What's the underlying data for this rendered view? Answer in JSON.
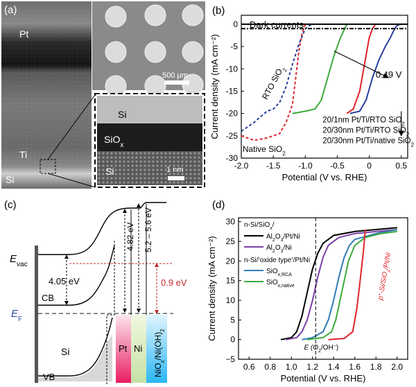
{
  "panel_a": {
    "letter": "(a)",
    "labels": {
      "pt": "Pt",
      "ti": "Ti",
      "si": "Si"
    },
    "sem_scale": "500 μm",
    "inset_labels": {
      "si_top": "Si",
      "siox": "SiO",
      "siox_sub": "x",
      "si_bottom": "Si"
    },
    "inset_scale": "1 nm"
  },
  "panel_b": {
    "letter": "(b)",
    "legend": {
      "dark": "Dark currents",
      "rto": "RTO SiO",
      "rto_sub": "2",
      "native": "Native SiO",
      "native_sub": "2",
      "onset": "0.49 V",
      "entries": [
        {
          "text": "20/1nm Pt/Ti/RTO SiO",
          "sub": "2"
        },
        {
          "text": "20/30nm Pt/Ti/RTO SiO",
          "sub": "2"
        },
        {
          "text": "20/30nm Pt/Ti/native SiO",
          "sub": "2"
        }
      ]
    }
  },
  "panel_c": {
    "letter": "(c)",
    "evac": "E",
    "evac_sub": "vac",
    "ef": "E",
    "ef_sub": "F",
    "gap405": "4.05 eV",
    "gap482": "4.82 eV",
    "gap52": "5.2 – 5.6 eV",
    "gap09": "0.9 eV",
    "cb": "CB",
    "vb": "VB",
    "si": "Si",
    "pt": "Pt",
    "ni": "Ni",
    "niox": "NiO",
    "niox_mid": "/Ni(OH)",
    "niox_x": "x",
    "niox_sub": "2"
  },
  "panel_d": {
    "letter": "(d)",
    "legend_group1": "n-Si/SiO",
    "legend_group1_sub": "x",
    "legend_group1_tail": "/",
    "legend_alo_ptni": "Al",
    "legend_alo_ptni_rest": "O",
    "legend_alo_ptni_tail": "/Pt/Ni",
    "legend_alo_ni_tail": "/Ni",
    "legend_group2": "n-Si/‘oxide type’/Pt/Ni",
    "legend_rca": "SiO",
    "legend_rca_sub": "x,RCA",
    "legend_native_sub": "x,native",
    "p_label": "p",
    "p_label_rest": "-Si/SiO",
    "p_label_x": "x",
    "p_label_tail": "/Pt/Ni",
    "eo2": "E (O",
    "eo2_tail": "/OH",
    "eo2_end": ")"
  },
  "chart_data": [
    {
      "type": "line",
      "panel": "b",
      "xlabel": "Potential (V vs. RHE)",
      "ylabel": "Current density (mA cm⁻²)",
      "xlim": [
        -2.0,
        0.6
      ],
      "ylim": [
        -30,
        2
      ],
      "xticks": [
        -2.0,
        -1.5,
        -1.0,
        -0.5,
        0.0,
        0.5
      ],
      "xtick_labels": [
        "-2.0",
        "-1.5",
        "-1.0",
        "-0.5",
        "0",
        "0.5"
      ],
      "yticks": [
        -30,
        -25,
        -20,
        -15,
        -10,
        -5,
        0
      ],
      "ytick_labels": [
        "-30",
        "-25",
        "-20",
        "-15",
        "-10",
        "-5",
        "0"
      ],
      "series": [
        {
          "color": "#2a3f9a",
          "style": "solid",
          "x": [
            -0.3,
            -0.15,
            -0.05,
            0.05,
            0.15,
            0.25,
            0.33,
            0.38,
            0.42,
            0.46,
            0.5,
            0.52
          ],
          "y": [
            -20,
            -19.5,
            -17,
            -12,
            -8,
            -5,
            -3,
            -1.5,
            -0.5,
            -0.1,
            0,
            0
          ]
        },
        {
          "color": "#e0242a",
          "style": "solid",
          "x": [
            -0.35,
            -0.25,
            -0.15,
            -0.05,
            0.0,
            0.05,
            0.1
          ],
          "y": [
            -20,
            -19,
            -15,
            -7,
            -3,
            -1,
            0
          ]
        },
        {
          "color": "#3aab3a",
          "style": "solid",
          "x": [
            -1.2,
            -1.0,
            -0.85,
            -0.75,
            -0.65,
            -0.55,
            -0.45,
            -0.35
          ],
          "y": [
            -20,
            -19.5,
            -19,
            -17,
            -12,
            -7,
            -3,
            0
          ]
        },
        {
          "color": "#e0242a",
          "style": "dashed",
          "x": [
            -2.0,
            -1.8,
            -1.6,
            -1.4,
            -1.3,
            -1.2,
            -1.15,
            -1.1,
            -1.05,
            -1.0
          ],
          "y": [
            -25,
            -26,
            -25.5,
            -24.5,
            -22,
            -18,
            -12,
            -6,
            -2,
            0
          ]
        },
        {
          "color": "#2a3f9a",
          "style": "dashed",
          "x": [
            -2.0,
            -1.8,
            -1.6,
            -1.5,
            -1.4,
            -1.3,
            -1.2,
            -1.1,
            -1.0,
            -0.9
          ],
          "y": [
            -24,
            -22,
            -19.5,
            -19,
            -17.5,
            -14,
            -9,
            -4.5,
            -1,
            0
          ]
        },
        {
          "color": "#000000",
          "style": "solid",
          "x": [
            -2.0,
            0.6
          ],
          "y": [
            0,
            0
          ]
        },
        {
          "color": "#000000",
          "style": "dashdot",
          "x": [
            -2.0,
            0.6
          ],
          "y": [
            -1,
            -1
          ]
        }
      ]
    },
    {
      "type": "line",
      "panel": "d",
      "xlabel": "Potential (V vs. RHE)",
      "ylabel": "Current density (mA cm⁻²)",
      "xlim": [
        0.5,
        2.1
      ],
      "ylim": [
        -5,
        31
      ],
      "xticks": [
        0.6,
        0.8,
        1.0,
        1.2,
        1.4,
        1.6,
        1.8,
        2.0
      ],
      "xtick_labels": [
        "0.6",
        "0.8",
        "1.0",
        "1.2",
        "1.4",
        "1.6",
        "1.8",
        "2.0"
      ],
      "yticks": [
        -5,
        0,
        5,
        10,
        15,
        20,
        25,
        30
      ],
      "ytick_labels": [
        "−5",
        "0",
        "5",
        "10",
        "15",
        "20",
        "25",
        "30"
      ],
      "series": [
        {
          "name": "Al2O3/Pt/Ni",
          "color": "#000000",
          "x": [
            0.9,
            1.0,
            1.05,
            1.1,
            1.15,
            1.2,
            1.25,
            1.3,
            1.4,
            1.6,
            2.0
          ],
          "y": [
            0,
            0.5,
            2,
            6,
            12,
            18,
            22,
            24.5,
            26.5,
            27.5,
            28.5
          ]
        },
        {
          "name": "Al2O3/Ni",
          "color": "#7b3fa6",
          "x": [
            0.95,
            1.05,
            1.1,
            1.15,
            1.2,
            1.25,
            1.3,
            1.35,
            1.45,
            1.6,
            2.0
          ],
          "y": [
            0,
            0.5,
            2,
            5,
            10,
            16,
            21,
            24,
            26,
            27,
            28
          ]
        },
        {
          "name": "SiOx,RCA",
          "color": "#2f7bb3",
          "x": [
            1.1,
            1.2,
            1.3,
            1.35,
            1.4,
            1.45,
            1.5,
            1.55,
            1.6,
            1.8,
            2.0
          ],
          "y": [
            0,
            0.5,
            2,
            5,
            10,
            16,
            21,
            24,
            25.5,
            27,
            28
          ]
        },
        {
          "name": "SiOx,native",
          "color": "#3aab3a",
          "x": [
            1.15,
            1.3,
            1.38,
            1.42,
            1.46,
            1.5,
            1.54,
            1.6,
            1.7,
            1.85,
            2.0
          ],
          "y": [
            0,
            0.5,
            2,
            5,
            10,
            15,
            20,
            24,
            26,
            27,
            27.5
          ]
        },
        {
          "name": "p+-Si/SiOx/Pt/Ni",
          "color": "#e0242a",
          "x": [
            1.35,
            1.5,
            1.58,
            1.62,
            1.65,
            1.68,
            1.7
          ],
          "y": [
            0,
            0.3,
            2,
            8,
            15,
            22,
            28
          ]
        }
      ],
      "vline": 1.23
    }
  ]
}
